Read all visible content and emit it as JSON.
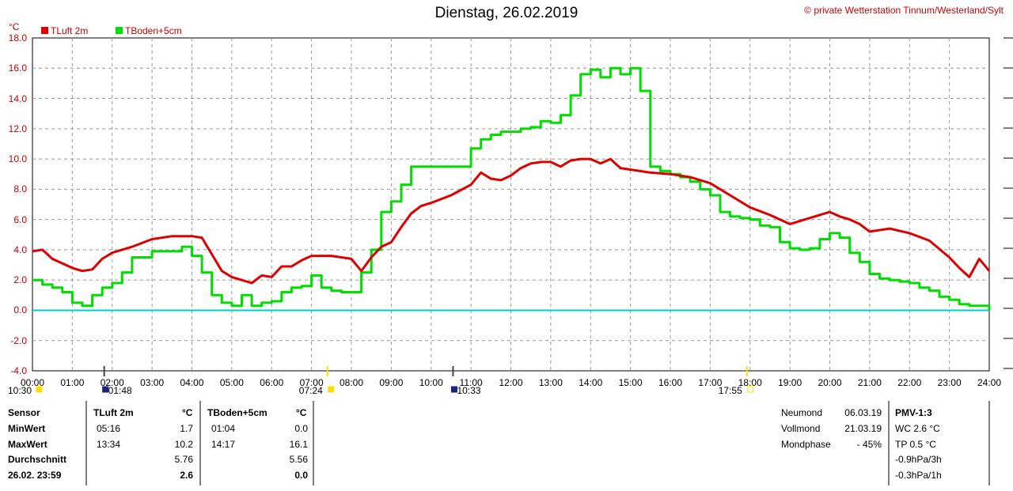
{
  "header": {
    "title": "Dienstag, 26.02.2019",
    "copyright": "© private Wetterstation Tinnum/Westerland/Sylt"
  },
  "colors": {
    "tluft": "#dd0000",
    "tboden": "#00dd00",
    "zero_line": "#00cccc",
    "axis_label": "#cc0000",
    "grid": "#999999"
  },
  "chart_data": {
    "type": "line",
    "unit_label": "°C",
    "ylim": [
      -4,
      18
    ],
    "yticks": [
      "-4.0",
      "-2.0",
      "0.0",
      "2.0",
      "4.0",
      "6.0",
      "8.0",
      "10.0",
      "12.0",
      "14.0",
      "16.0",
      "18.0"
    ],
    "xticks": [
      "00:00",
      "01:00",
      "02:00",
      "03:00",
      "04:00",
      "05:00",
      "06:00",
      "07:00",
      "08:00",
      "09:00",
      "10:00",
      "11:00",
      "12:00",
      "13:00",
      "14:00",
      "15:00",
      "16:00",
      "17:00",
      "18:00",
      "19:00",
      "20:00",
      "21:00",
      "22:00",
      "23:00",
      "24:00"
    ],
    "x_unit": "hours",
    "grid": true,
    "reference_line": 0.0,
    "series": [
      {
        "name": "TLuft 2m",
        "x": [
          0.0,
          0.25,
          0.5,
          0.75,
          1.0,
          1.25,
          1.5,
          1.75,
          2.0,
          2.5,
          3.0,
          3.5,
          4.0,
          4.25,
          4.5,
          4.75,
          5.0,
          5.25,
          5.5,
          5.75,
          6.0,
          6.25,
          6.5,
          6.75,
          7.0,
          7.5,
          8.0,
          8.25,
          8.5,
          8.75,
          9.0,
          9.25,
          9.5,
          9.75,
          10.0,
          10.5,
          11.0,
          11.25,
          11.5,
          11.75,
          12.0,
          12.25,
          12.5,
          12.75,
          13.0,
          13.25,
          13.5,
          13.75,
          14.0,
          14.25,
          14.5,
          14.75,
          15.0,
          15.5,
          16.0,
          16.5,
          17.0,
          17.5,
          18.0,
          18.5,
          19.0,
          19.5,
          20.0,
          20.25,
          20.5,
          20.75,
          21.0,
          21.5,
          22.0,
          22.5,
          23.0,
          23.25,
          23.5,
          23.75,
          24.0
        ],
        "y": [
          3.9,
          4.0,
          3.4,
          3.1,
          2.8,
          2.6,
          2.7,
          3.4,
          3.8,
          4.2,
          4.7,
          4.9,
          4.9,
          4.8,
          3.7,
          2.6,
          2.2,
          2.0,
          1.8,
          2.3,
          2.2,
          2.9,
          2.9,
          3.3,
          3.6,
          3.6,
          3.4,
          2.6,
          3.5,
          4.2,
          4.5,
          5.5,
          6.4,
          6.9,
          7.1,
          7.6,
          8.3,
          9.1,
          8.7,
          8.6,
          8.9,
          9.4,
          9.7,
          9.8,
          9.8,
          9.5,
          9.9,
          10.0,
          10.0,
          9.7,
          10.0,
          9.4,
          9.3,
          9.1,
          9.0,
          8.8,
          8.4,
          7.6,
          6.8,
          6.3,
          5.7,
          6.1,
          6.5,
          6.2,
          6.0,
          5.7,
          5.2,
          5.4,
          5.1,
          4.6,
          3.5,
          2.8,
          2.2,
          3.4,
          2.6
        ]
      },
      {
        "name": "TBoden+5cm",
        "x": [
          0.0,
          0.25,
          0.5,
          0.75,
          1.0,
          1.25,
          1.5,
          1.75,
          2.0,
          2.25,
          2.5,
          3.0,
          3.5,
          3.75,
          4.0,
          4.25,
          4.5,
          4.75,
          5.0,
          5.25,
          5.5,
          5.75,
          6.0,
          6.25,
          6.5,
          6.75,
          7.0,
          7.25,
          7.5,
          7.75,
          8.0,
          8.25,
          8.5,
          8.75,
          9.0,
          9.25,
          9.5,
          9.75,
          10.0,
          10.5,
          11.0,
          11.25,
          11.5,
          11.75,
          12.0,
          12.25,
          12.5,
          12.75,
          13.0,
          13.25,
          13.5,
          13.75,
          14.0,
          14.25,
          14.5,
          14.75,
          15.0,
          15.25,
          15.5,
          15.75,
          16.0,
          16.25,
          16.5,
          16.75,
          17.0,
          17.25,
          17.5,
          17.75,
          18.0,
          18.25,
          18.5,
          18.75,
          19.0,
          19.25,
          19.5,
          19.75,
          20.0,
          20.25,
          20.5,
          20.75,
          21.0,
          21.25,
          21.5,
          21.75,
          22.0,
          22.25,
          22.5,
          22.75,
          23.0,
          23.25,
          23.5,
          23.75,
          24.0
        ],
        "y": [
          2.0,
          1.7,
          1.5,
          1.2,
          0.5,
          0.3,
          1.0,
          1.5,
          1.8,
          2.5,
          3.5,
          3.9,
          3.9,
          4.2,
          3.6,
          2.5,
          1.0,
          0.5,
          0.3,
          1.0,
          0.3,
          0.5,
          0.6,
          1.2,
          1.5,
          1.6,
          2.3,
          1.5,
          1.3,
          1.2,
          1.2,
          2.5,
          4.0,
          6.5,
          7.2,
          8.3,
          9.5,
          9.5,
          9.5,
          9.5,
          10.7,
          11.3,
          11.6,
          11.8,
          11.8,
          12.0,
          12.1,
          12.5,
          12.4,
          12.9,
          14.2,
          15.6,
          15.9,
          15.4,
          16.0,
          15.6,
          16.0,
          14.5,
          9.5,
          9.2,
          9.0,
          8.8,
          8.5,
          8.0,
          7.6,
          6.5,
          6.2,
          6.1,
          6.0,
          5.6,
          5.5,
          4.5,
          4.1,
          4.0,
          4.1,
          4.7,
          5.1,
          4.8,
          3.8,
          3.2,
          2.4,
          2.1,
          2.0,
          1.9,
          1.8,
          1.5,
          1.3,
          0.9,
          0.7,
          0.4,
          0.3,
          0.3,
          0.0
        ]
      }
    ],
    "events": [
      {
        "label": "10:30",
        "hour": 0.0,
        "marker": "sun"
      },
      {
        "label": "01:48",
        "hour": 1.8,
        "marker": "moon"
      },
      {
        "label": "07:24",
        "hour": 7.4,
        "marker": "sun"
      },
      {
        "label": "10:33",
        "hour": 10.55,
        "marker": "moon"
      },
      {
        "label": "17:55",
        "hour": 17.92,
        "marker": "sunset"
      }
    ]
  },
  "table": {
    "headers": {
      "sensor": "Sensor",
      "tluft": "TLuft 2m",
      "tluft_unit": "°C",
      "tboden": "TBoden+5cm",
      "tboden_unit": "°C"
    },
    "rows": [
      {
        "label": "MinWert",
        "t1": "05:16",
        "v1": "1.7",
        "t2": "01:04",
        "v2": "0.0"
      },
      {
        "label": "MaxWert",
        "t1": "13:34",
        "v1": "10.2",
        "t2": "14:17",
        "v2": "16.1"
      },
      {
        "label": "Durchschnitt",
        "t1": "",
        "v1": "5.76",
        "t2": "",
        "v2": "5.56"
      },
      {
        "label": "26.02. 23:59",
        "t1": "",
        "v1": "2.6",
        "t2": "",
        "v2": "0.0"
      }
    ],
    "moon": [
      {
        "label": "Neumond",
        "value": "06.03.19"
      },
      {
        "label": "Vollmond",
        "value": "21.03.19"
      },
      {
        "label": "Mondphase",
        "value": "- 45%"
      }
    ],
    "pmv": {
      "title": "PMV-1:3",
      "lines": [
        "WC 2.6 °C",
        "TP 0.5 °C",
        "-0.9hPa/3h",
        "-0.3hPa/1h"
      ]
    }
  }
}
